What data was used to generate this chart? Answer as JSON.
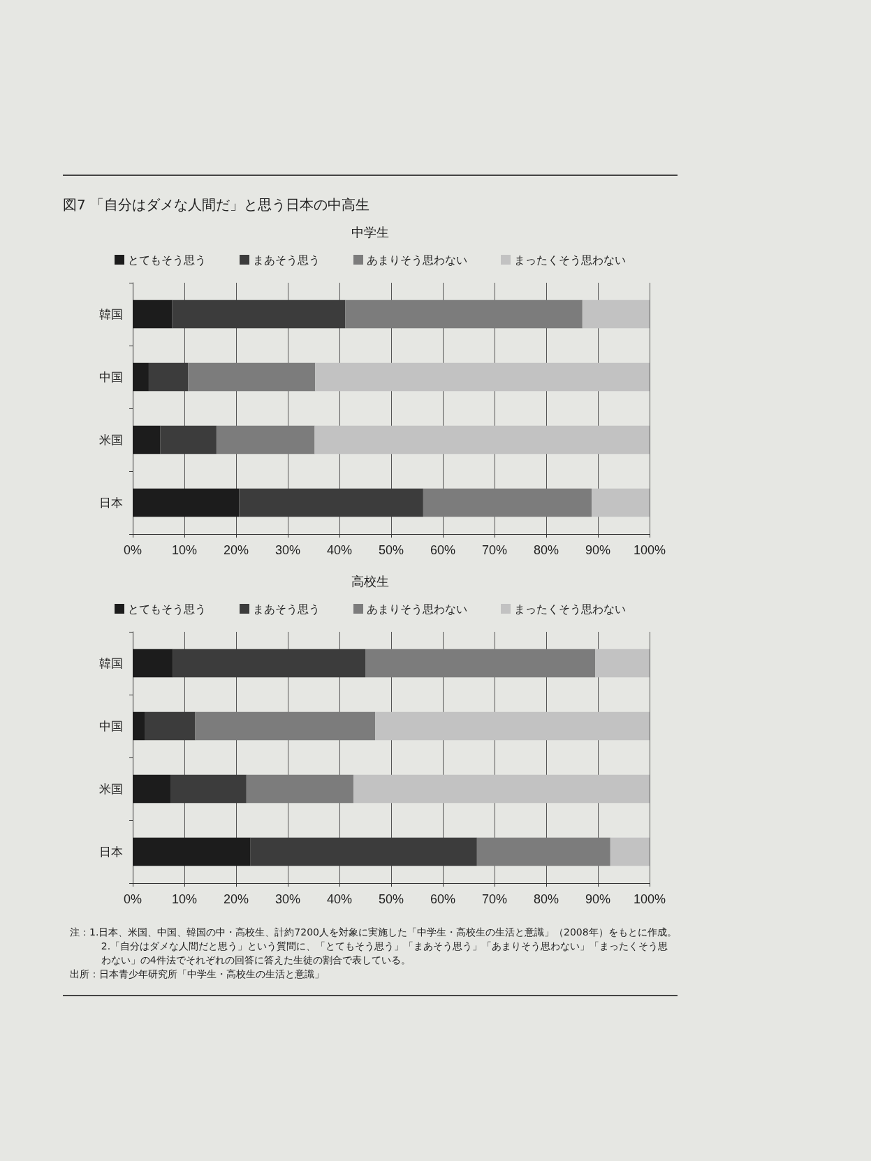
{
  "chart_data": [
    {
      "type": "bar",
      "title": "図7 「自分はダメな人間だ」と思う日本の中高生",
      "subtitle": "中学生",
      "orientation": "horizontal",
      "stacked": true,
      "categories": [
        "韓国",
        "中国",
        "米国",
        "日本"
      ],
      "series": [
        {
          "name": "とてもそう思う",
          "color": "#1c1c1c",
          "values": [
            7.6,
            3.1,
            5.3,
            20.6
          ]
        },
        {
          "name": "まあそう思う",
          "color": "#3c3c3c",
          "values": [
            33.5,
            7.6,
            10.9,
            35.6
          ]
        },
        {
          "name": "あまりそう思わない",
          "color": "#7c7c7c",
          "values": [
            45.9,
            24.6,
            19.0,
            32.6
          ]
        },
        {
          "name": "まったくそう思わない",
          "color": "#c2c2c2",
          "values": [
            13.0,
            64.7,
            64.8,
            11.2
          ]
        }
      ],
      "xlim": [
        0,
        100
      ],
      "xticks": [
        {
          "value": 0,
          "label": "0%"
        },
        {
          "value": 10,
          "label": "10%"
        },
        {
          "value": 20,
          "label": "20%"
        },
        {
          "value": 30,
          "label": "30%"
        },
        {
          "value": 40,
          "label": "40%"
        },
        {
          "value": 50,
          "label": "50%"
        },
        {
          "value": 60,
          "label": "60%"
        },
        {
          "value": 70,
          "label": "70%"
        },
        {
          "value": 80,
          "label": "80%"
        },
        {
          "value": 90,
          "label": "90%"
        },
        {
          "value": 100,
          "label": "100%"
        }
      ],
      "grid": "x",
      "legend": "top"
    },
    {
      "type": "bar",
      "title": "高校生",
      "orientation": "horizontal",
      "stacked": true,
      "categories": [
        "韓国",
        "中国",
        "米国",
        "日本"
      ],
      "series": [
        {
          "name": "とてもそう思う",
          "color": "#1c1c1c",
          "values": [
            7.8,
            2.3,
            7.3,
            22.8
          ]
        },
        {
          "name": "まあそう思う",
          "color": "#3c3c3c",
          "values": [
            37.2,
            9.8,
            14.7,
            43.8
          ]
        },
        {
          "name": "あまりそう思わない",
          "color": "#7c7c7c",
          "values": [
            44.5,
            34.8,
            20.7,
            25.8
          ]
        },
        {
          "name": "まったくそう思わない",
          "color": "#c2c2c2",
          "values": [
            10.5,
            53.1,
            57.3,
            7.6
          ]
        }
      ],
      "xlim": [
        0,
        100
      ],
      "xticks": [
        {
          "value": 0,
          "label": "0%"
        },
        {
          "value": 10,
          "label": "10%"
        },
        {
          "value": 20,
          "label": "20%"
        },
        {
          "value": 30,
          "label": "30%"
        },
        {
          "value": 40,
          "label": "40%"
        },
        {
          "value": 50,
          "label": "50%"
        },
        {
          "value": 60,
          "label": "60%"
        },
        {
          "value": 70,
          "label": "70%"
        },
        {
          "value": 80,
          "label": "80%"
        },
        {
          "value": 90,
          "label": "90%"
        },
        {
          "value": 100,
          "label": "100%"
        }
      ],
      "grid": "x",
      "legend": "top",
      "annotations": [
        "注：1.日本、米国、中国、韓国の中・高校生、計約7200人を対象に実施した「中学生・高校生の生活と意識」（2008年）をもとに作成。",
        "2.「自分はダメな人間だと思う」という質問に、「とてもそう思う」「まあそう思う」「あまりそう思わない」「まったくそう思わない」の4件法でそれぞれの回答に答えた生徒の割合で表している。",
        "出所：日本青少年研究所「中学生・高校生の生活と意識」"
      ]
    }
  ]
}
